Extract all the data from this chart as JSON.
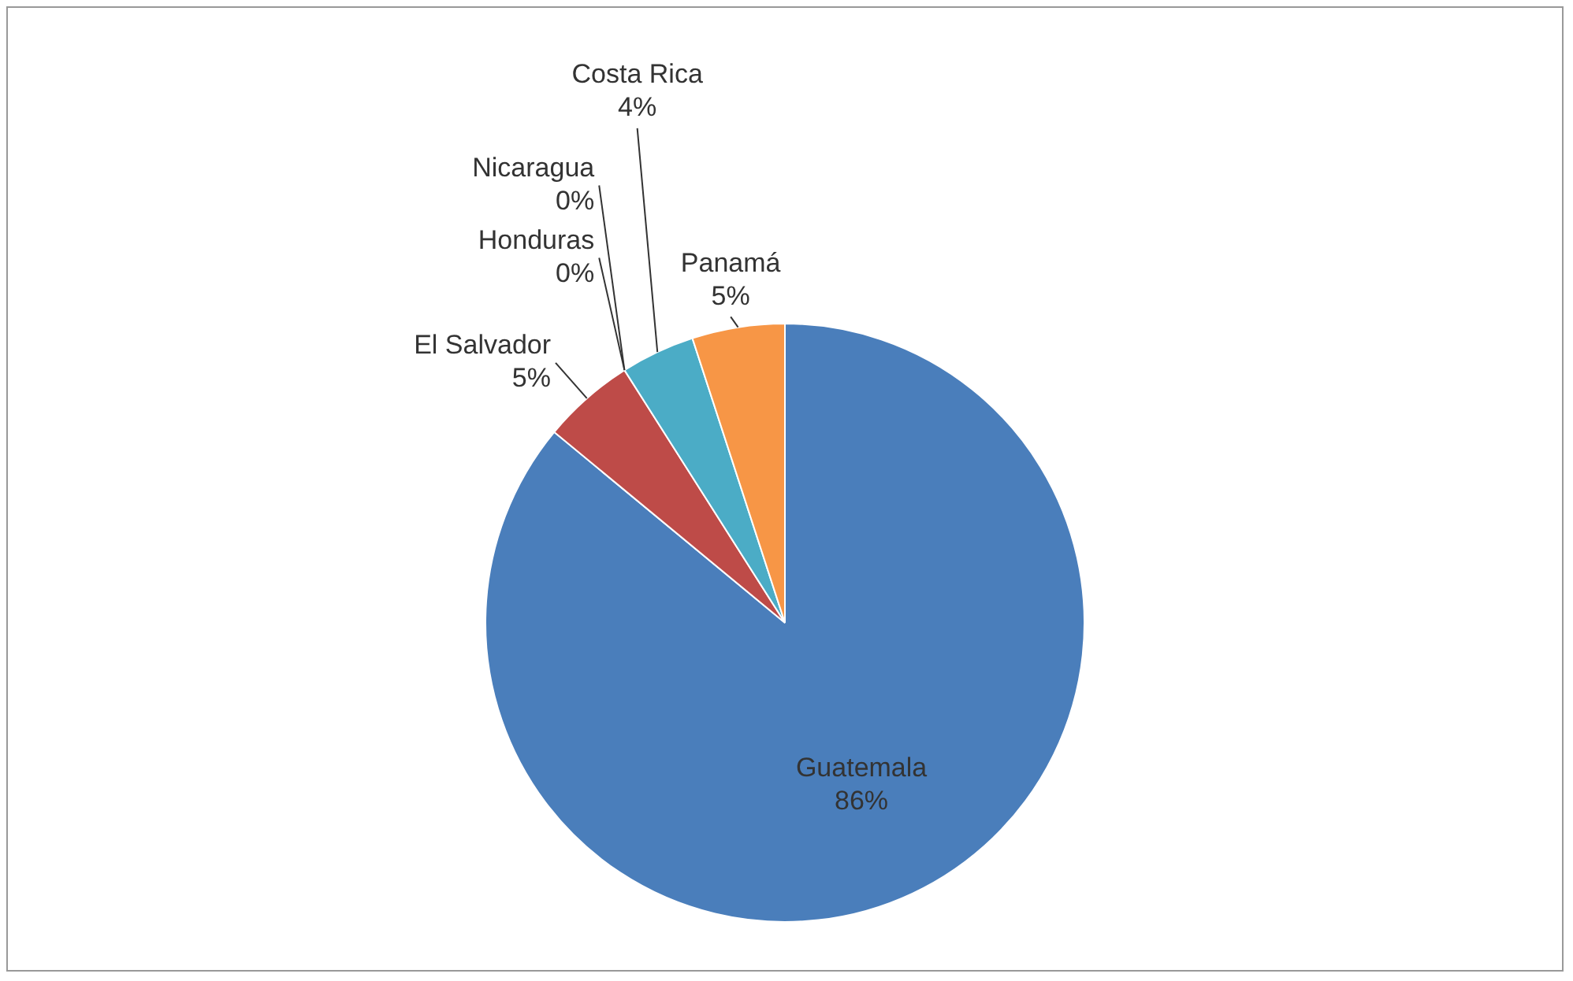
{
  "chart_data": {
    "type": "pie",
    "categories": [
      "Guatemala",
      "El Salvador",
      "Honduras",
      "Nicaragua",
      "Costa Rica",
      "Panamá"
    ],
    "values": [
      86,
      5,
      0,
      0,
      4,
      5
    ],
    "colors": [
      "#4a7ebb",
      "#be4b48",
      "#98b954",
      "#7d60a0",
      "#4bacc6",
      "#f79646"
    ],
    "value_labels": [
      "86%",
      "5%",
      "0%",
      "0%",
      "4%",
      "5%"
    ],
    "legend": false
  }
}
